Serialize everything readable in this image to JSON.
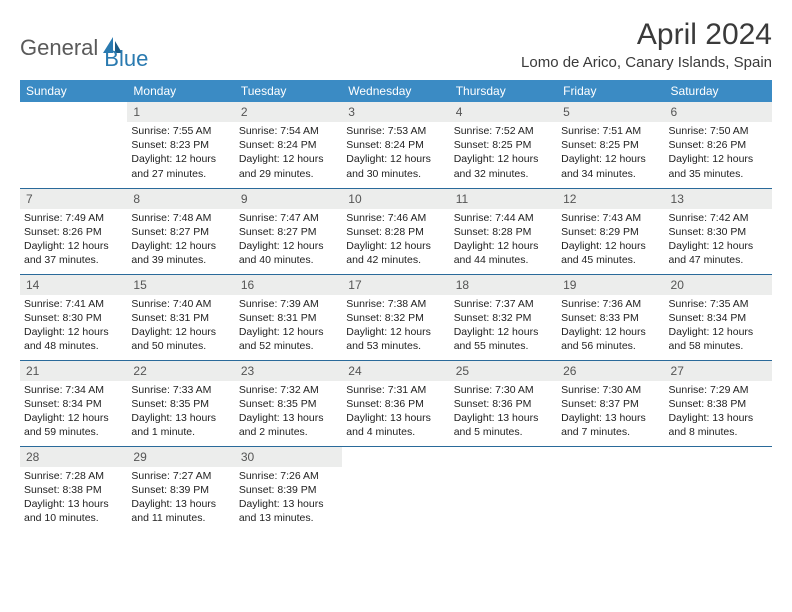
{
  "logo": {
    "text1": "General",
    "text2": "Blue"
  },
  "title": "April 2024",
  "location": "Lomo de Arico, Canary Islands, Spain",
  "colors": {
    "header_bg": "#3b8bc4",
    "header_text": "#ffffff",
    "day_num_bg": "#ecedec",
    "row_border": "#2a6a9a",
    "logo_gray": "#5a5a5a",
    "logo_blue": "#2a7ab0"
  },
  "day_headers": [
    "Sunday",
    "Monday",
    "Tuesday",
    "Wednesday",
    "Thursday",
    "Friday",
    "Saturday"
  ],
  "weeks": [
    [
      null,
      {
        "n": "1",
        "sr": "7:55 AM",
        "ss": "8:23 PM",
        "dl": "12 hours and 27 minutes."
      },
      {
        "n": "2",
        "sr": "7:54 AM",
        "ss": "8:24 PM",
        "dl": "12 hours and 29 minutes."
      },
      {
        "n": "3",
        "sr": "7:53 AM",
        "ss": "8:24 PM",
        "dl": "12 hours and 30 minutes."
      },
      {
        "n": "4",
        "sr": "7:52 AM",
        "ss": "8:25 PM",
        "dl": "12 hours and 32 minutes."
      },
      {
        "n": "5",
        "sr": "7:51 AM",
        "ss": "8:25 PM",
        "dl": "12 hours and 34 minutes."
      },
      {
        "n": "6",
        "sr": "7:50 AM",
        "ss": "8:26 PM",
        "dl": "12 hours and 35 minutes."
      }
    ],
    [
      {
        "n": "7",
        "sr": "7:49 AM",
        "ss": "8:26 PM",
        "dl": "12 hours and 37 minutes."
      },
      {
        "n": "8",
        "sr": "7:48 AM",
        "ss": "8:27 PM",
        "dl": "12 hours and 39 minutes."
      },
      {
        "n": "9",
        "sr": "7:47 AM",
        "ss": "8:27 PM",
        "dl": "12 hours and 40 minutes."
      },
      {
        "n": "10",
        "sr": "7:46 AM",
        "ss": "8:28 PM",
        "dl": "12 hours and 42 minutes."
      },
      {
        "n": "11",
        "sr": "7:44 AM",
        "ss": "8:28 PM",
        "dl": "12 hours and 44 minutes."
      },
      {
        "n": "12",
        "sr": "7:43 AM",
        "ss": "8:29 PM",
        "dl": "12 hours and 45 minutes."
      },
      {
        "n": "13",
        "sr": "7:42 AM",
        "ss": "8:30 PM",
        "dl": "12 hours and 47 minutes."
      }
    ],
    [
      {
        "n": "14",
        "sr": "7:41 AM",
        "ss": "8:30 PM",
        "dl": "12 hours and 48 minutes."
      },
      {
        "n": "15",
        "sr": "7:40 AM",
        "ss": "8:31 PM",
        "dl": "12 hours and 50 minutes."
      },
      {
        "n": "16",
        "sr": "7:39 AM",
        "ss": "8:31 PM",
        "dl": "12 hours and 52 minutes."
      },
      {
        "n": "17",
        "sr": "7:38 AM",
        "ss": "8:32 PM",
        "dl": "12 hours and 53 minutes."
      },
      {
        "n": "18",
        "sr": "7:37 AM",
        "ss": "8:32 PM",
        "dl": "12 hours and 55 minutes."
      },
      {
        "n": "19",
        "sr": "7:36 AM",
        "ss": "8:33 PM",
        "dl": "12 hours and 56 minutes."
      },
      {
        "n": "20",
        "sr": "7:35 AM",
        "ss": "8:34 PM",
        "dl": "12 hours and 58 minutes."
      }
    ],
    [
      {
        "n": "21",
        "sr": "7:34 AM",
        "ss": "8:34 PM",
        "dl": "12 hours and 59 minutes."
      },
      {
        "n": "22",
        "sr": "7:33 AM",
        "ss": "8:35 PM",
        "dl": "13 hours and 1 minute."
      },
      {
        "n": "23",
        "sr": "7:32 AM",
        "ss": "8:35 PM",
        "dl": "13 hours and 2 minutes."
      },
      {
        "n": "24",
        "sr": "7:31 AM",
        "ss": "8:36 PM",
        "dl": "13 hours and 4 minutes."
      },
      {
        "n": "25",
        "sr": "7:30 AM",
        "ss": "8:36 PM",
        "dl": "13 hours and 5 minutes."
      },
      {
        "n": "26",
        "sr": "7:30 AM",
        "ss": "8:37 PM",
        "dl": "13 hours and 7 minutes."
      },
      {
        "n": "27",
        "sr": "7:29 AM",
        "ss": "8:38 PM",
        "dl": "13 hours and 8 minutes."
      }
    ],
    [
      {
        "n": "28",
        "sr": "7:28 AM",
        "ss": "8:38 PM",
        "dl": "13 hours and 10 minutes."
      },
      {
        "n": "29",
        "sr": "7:27 AM",
        "ss": "8:39 PM",
        "dl": "13 hours and 11 minutes."
      },
      {
        "n": "30",
        "sr": "7:26 AM",
        "ss": "8:39 PM",
        "dl": "13 hours and 13 minutes."
      },
      null,
      null,
      null,
      null
    ]
  ],
  "labels": {
    "sunrise": "Sunrise:",
    "sunset": "Sunset:",
    "daylight": "Daylight:"
  }
}
